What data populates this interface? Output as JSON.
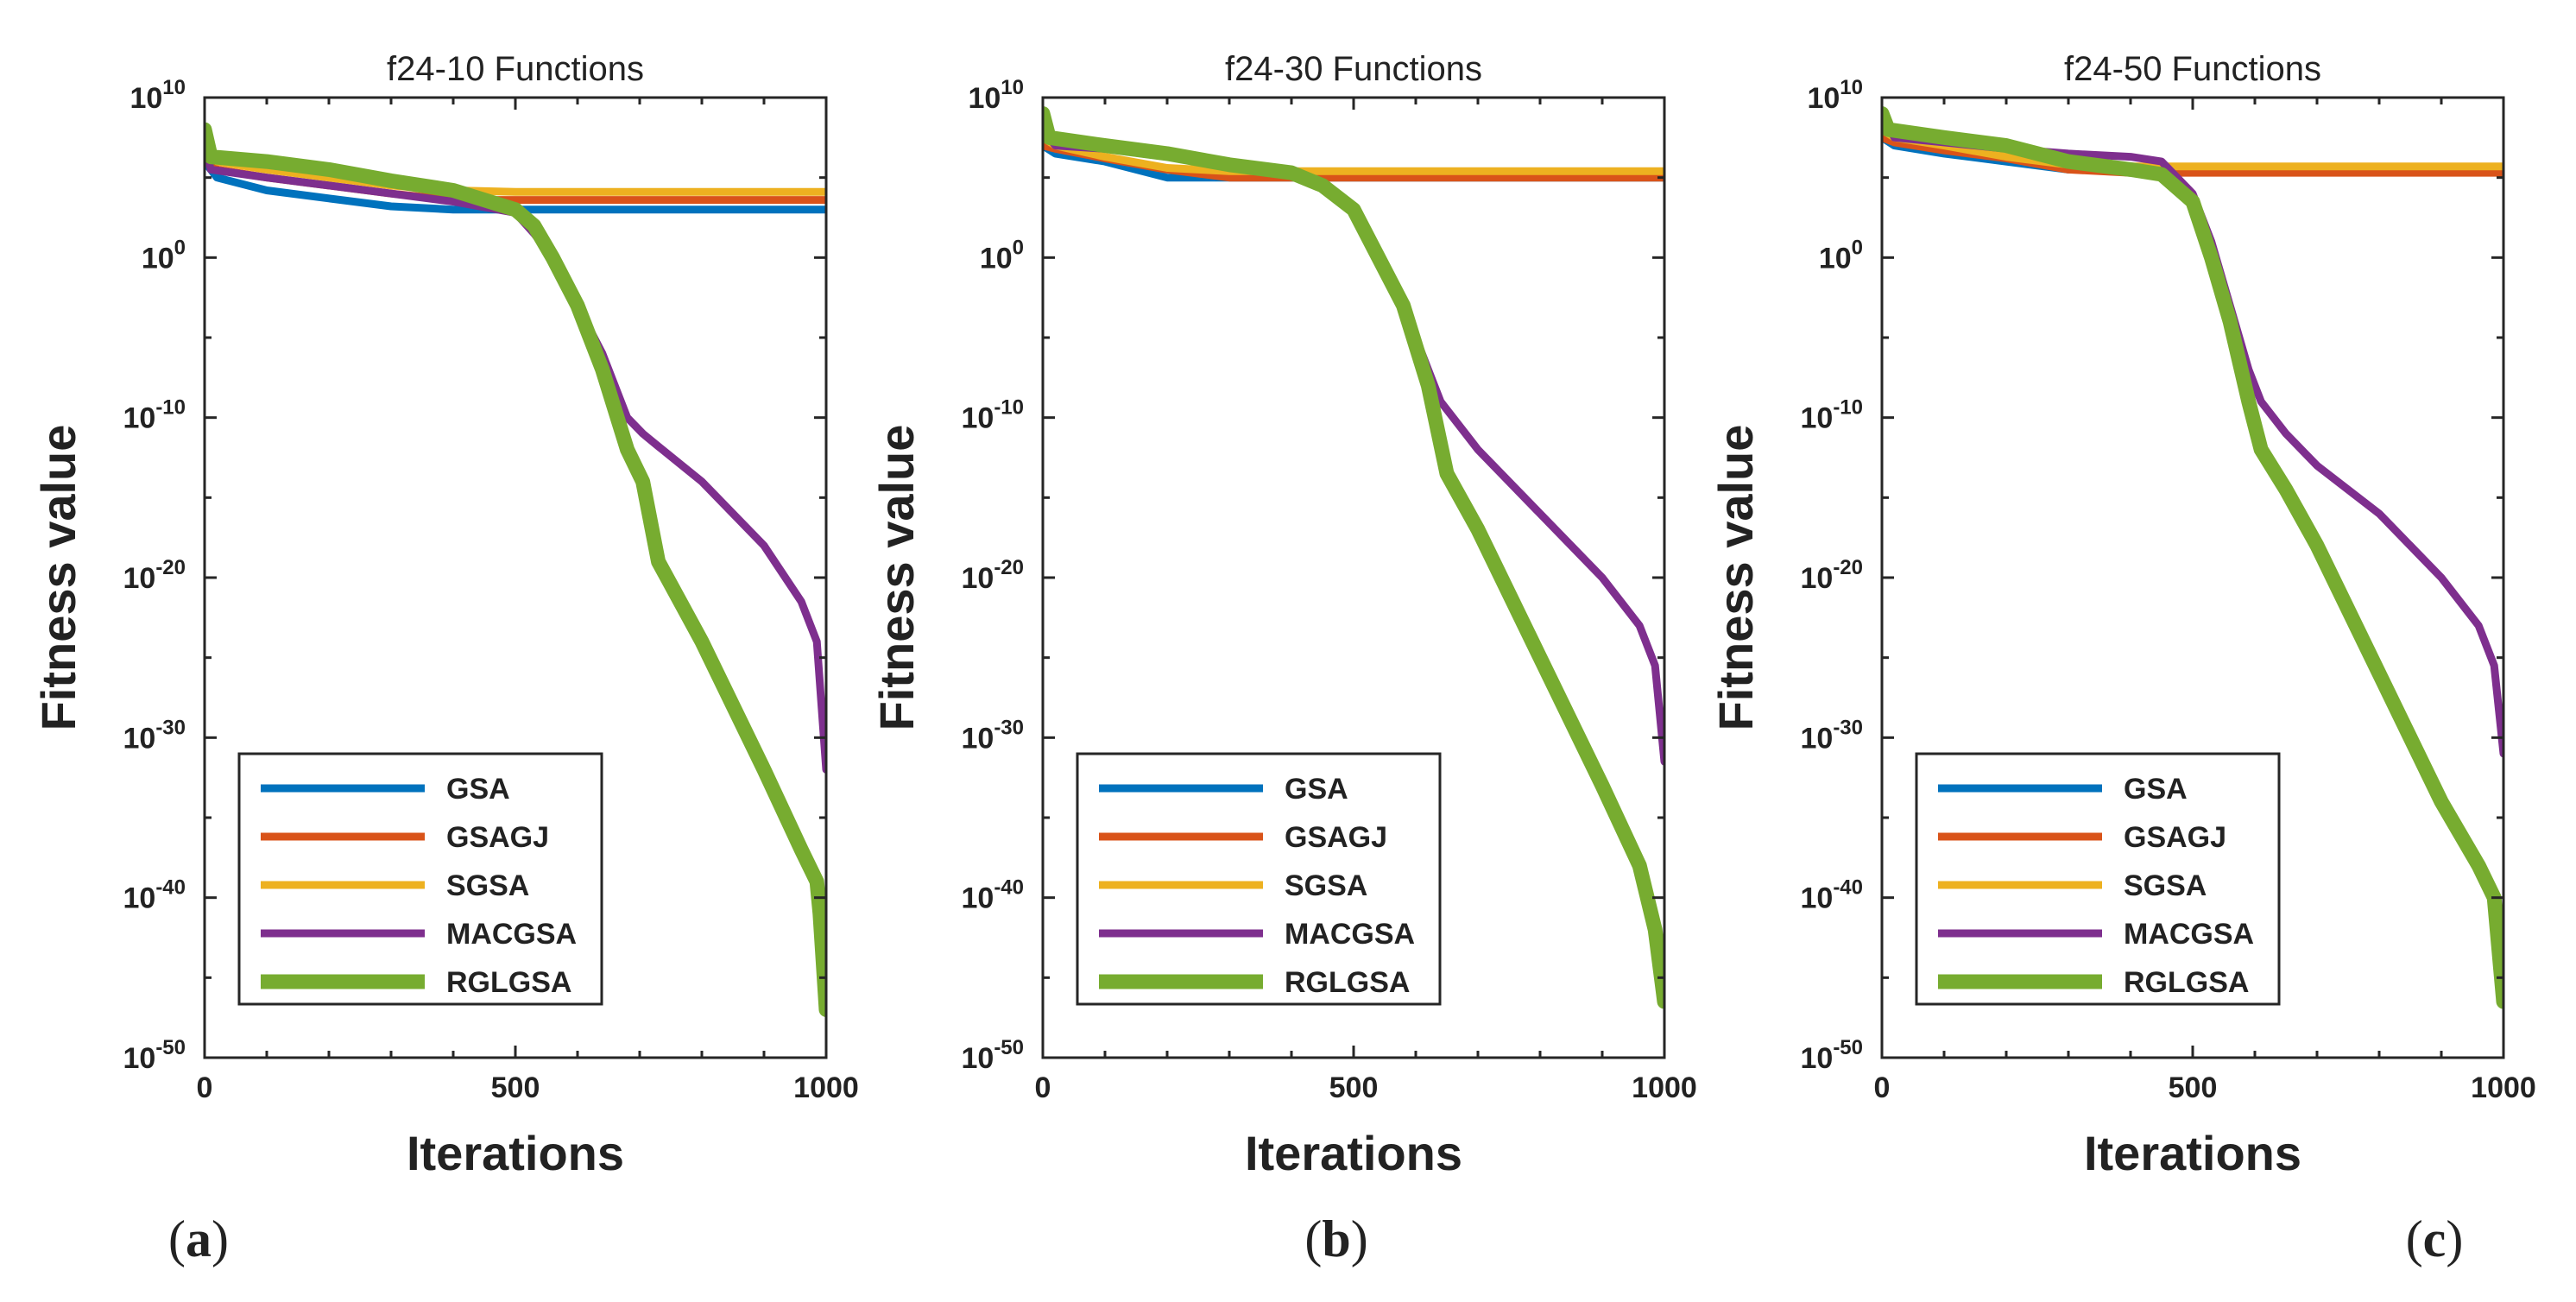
{
  "colors": {
    "GSA": "#0072BD",
    "GSAGJ": "#D95319",
    "SGSA": "#EDB120",
    "MACGSA": "#7E2F8E",
    "RGLGSA": "#77AC30"
  },
  "chart_data": [
    {
      "type": "line",
      "title": "f24-10 Functions",
      "xlabel": "Iterations",
      "ylabel": "Fitness value",
      "xlim": [
        0,
        1000
      ],
      "ylim_log10": [
        -50,
        10
      ],
      "yscale": "log",
      "xticks": [
        "0",
        "500",
        "1000"
      ],
      "yticks": [
        {
          "base": "10",
          "exp": "10"
        },
        {
          "base": "10",
          "exp": "0"
        },
        {
          "base": "10",
          "exp": "-10"
        },
        {
          "base": "10",
          "exp": "-20"
        },
        {
          "base": "10",
          "exp": "-30"
        },
        {
          "base": "10",
          "exp": "-40"
        },
        {
          "base": "10",
          "exp": "-50"
        }
      ],
      "legend_position": "bottom-left",
      "panel_label": {
        "open": "(",
        "letter": "a",
        "close": ")"
      },
      "series": [
        {
          "name": "GSA",
          "x": [
            0,
            20,
            100,
            200,
            300,
            400,
            500,
            1000
          ],
          "log10_y": [
            6,
            5,
            4.2,
            3.7,
            3.2,
            3,
            3,
            3
          ]
        },
        {
          "name": "GSAGJ",
          "x": [
            0,
            20,
            100,
            200,
            300,
            400,
            500,
            1000
          ],
          "log10_y": [
            6.5,
            5.5,
            5,
            4.5,
            4,
            3.6,
            3.6,
            3.6
          ]
        },
        {
          "name": "SGSA",
          "x": [
            0,
            20,
            100,
            200,
            300,
            400,
            500,
            1000
          ],
          "log10_y": [
            7,
            6,
            5.5,
            5,
            4.5,
            4.2,
            4.1,
            4.1
          ]
        },
        {
          "name": "MACGSA",
          "x": [
            0,
            10,
            100,
            200,
            300,
            400,
            500,
            530,
            560,
            600,
            640,
            680,
            705,
            730,
            800,
            900,
            960,
            985,
            1000
          ],
          "log10_y": [
            7,
            5.5,
            5,
            4.5,
            4,
            3.5,
            2.8,
            1.5,
            0,
            -3,
            -6,
            -10,
            -11,
            -11.8,
            -14,
            -18,
            -21.5,
            -24,
            -32
          ]
        },
        {
          "name": "RGLGSA",
          "x": [
            0,
            10,
            100,
            200,
            300,
            400,
            500,
            530,
            560,
            600,
            640,
            680,
            705,
            730,
            800,
            900,
            960,
            985,
            990,
            1000
          ],
          "log10_y": [
            8,
            6.3,
            6,
            5.5,
            4.8,
            4.2,
            3,
            2,
            0,
            -3,
            -7,
            -12,
            -14,
            -19,
            -24,
            -32,
            -37,
            -39,
            -41,
            -47
          ]
        }
      ]
    },
    {
      "type": "line",
      "title": "f24-30 Functions",
      "xlabel": "Iterations",
      "ylabel": "Fitness value",
      "xlim": [
        0,
        1000
      ],
      "ylim_log10": [
        -50,
        10
      ],
      "yscale": "log",
      "xticks": [
        "0",
        "500",
        "1000"
      ],
      "yticks": [
        {
          "base": "10",
          "exp": "10"
        },
        {
          "base": "10",
          "exp": "0"
        },
        {
          "base": "10",
          "exp": "-10"
        },
        {
          "base": "10",
          "exp": "-20"
        },
        {
          "base": "10",
          "exp": "-30"
        },
        {
          "base": "10",
          "exp": "-40"
        },
        {
          "base": "10",
          "exp": "-50"
        }
      ],
      "legend_position": "bottom-left",
      "panel_label": {
        "open": "(",
        "letter": "b",
        "close": ")"
      },
      "series": [
        {
          "name": "GSA",
          "x": [
            0,
            20,
            100,
            200,
            300,
            400,
            1000
          ],
          "log10_y": [
            7,
            6.5,
            6,
            5,
            5,
            5,
            5
          ]
        },
        {
          "name": "GSAGJ",
          "x": [
            0,
            20,
            100,
            200,
            300,
            400,
            1000
          ],
          "log10_y": [
            7,
            6.8,
            6.2,
            5.5,
            5,
            5,
            5
          ]
        },
        {
          "name": "SGSA",
          "x": [
            0,
            20,
            100,
            200,
            300,
            400,
            1000
          ],
          "log10_y": [
            7.5,
            7,
            6.3,
            5.6,
            5.4,
            5.4,
            5.4
          ]
        },
        {
          "name": "MACGSA",
          "x": [
            0,
            20,
            100,
            200,
            300,
            400,
            450,
            500,
            540,
            580,
            620,
            640,
            700,
            800,
            900,
            960,
            985,
            1000
          ],
          "log10_y": [
            8,
            7,
            6.8,
            6.3,
            5.8,
            5.3,
            4.5,
            3,
            0,
            -3,
            -7,
            -9,
            -12,
            -16,
            -20,
            -23,
            -25.5,
            -31.5
          ]
        },
        {
          "name": "RGLGSA",
          "x": [
            0,
            10,
            100,
            200,
            300,
            400,
            450,
            500,
            540,
            580,
            620,
            650,
            700,
            800,
            900,
            960,
            985,
            1000
          ],
          "log10_y": [
            9,
            7.5,
            7,
            6.5,
            5.8,
            5.3,
            4.5,
            3,
            0,
            -3,
            -8,
            -13.5,
            -17,
            -25,
            -33,
            -38,
            -42,
            -46.5
          ]
        }
      ]
    },
    {
      "type": "line",
      "title": "f24-50 Functions",
      "xlabel": "Iterations",
      "ylabel": "Fitness value",
      "xlim": [
        0,
        1000
      ],
      "ylim_log10": [
        -50,
        10
      ],
      "yscale": "log",
      "xticks": [
        "0",
        "500",
        "1000"
      ],
      "yticks": [
        {
          "base": "10",
          "exp": "10"
        },
        {
          "base": "10",
          "exp": "0"
        },
        {
          "base": "10",
          "exp": "-10"
        },
        {
          "base": "10",
          "exp": "-20"
        },
        {
          "base": "10",
          "exp": "-30"
        },
        {
          "base": "10",
          "exp": "-40"
        },
        {
          "base": "10",
          "exp": "-50"
        }
      ],
      "legend_position": "bottom-left",
      "panel_label": {
        "open": "(",
        "letter": "c",
        "close": ")"
      },
      "series": [
        {
          "name": "GSA",
          "x": [
            0,
            20,
            100,
            200,
            300,
            400,
            1000
          ],
          "log10_y": [
            7.5,
            7,
            6.5,
            6,
            5.5,
            5.5,
            5.5
          ]
        },
        {
          "name": "GSAGJ",
          "x": [
            0,
            20,
            100,
            200,
            300,
            400,
            1000
          ],
          "log10_y": [
            7.5,
            7.2,
            6.7,
            6.2,
            5.5,
            5.3,
            5.3
          ]
        },
        {
          "name": "SGSA",
          "x": [
            0,
            20,
            100,
            200,
            300,
            400,
            1000
          ],
          "log10_y": [
            8,
            7.5,
            7,
            6.3,
            5.8,
            5.7,
            5.7
          ]
        },
        {
          "name": "MACGSA",
          "x": [
            0,
            20,
            100,
            200,
            300,
            400,
            450,
            500,
            530,
            560,
            590,
            610,
            650,
            700,
            800,
            900,
            960,
            985,
            1000
          ],
          "log10_y": [
            9,
            7.5,
            7.2,
            6.8,
            6.5,
            6.3,
            6,
            4,
            1,
            -3,
            -7,
            -9,
            -11,
            -13,
            -16,
            -20,
            -23,
            -25.5,
            -31
          ]
        },
        {
          "name": "RGLGSA",
          "x": [
            0,
            10,
            100,
            200,
            300,
            400,
            450,
            500,
            530,
            560,
            590,
            610,
            650,
            700,
            800,
            900,
            960,
            985,
            1000
          ],
          "log10_y": [
            9,
            8,
            7.5,
            7,
            6,
            5.5,
            5.2,
            3.5,
            0,
            -4,
            -9,
            -12,
            -14.5,
            -18,
            -26,
            -34,
            -38,
            -40,
            -46.5
          ]
        }
      ]
    }
  ]
}
